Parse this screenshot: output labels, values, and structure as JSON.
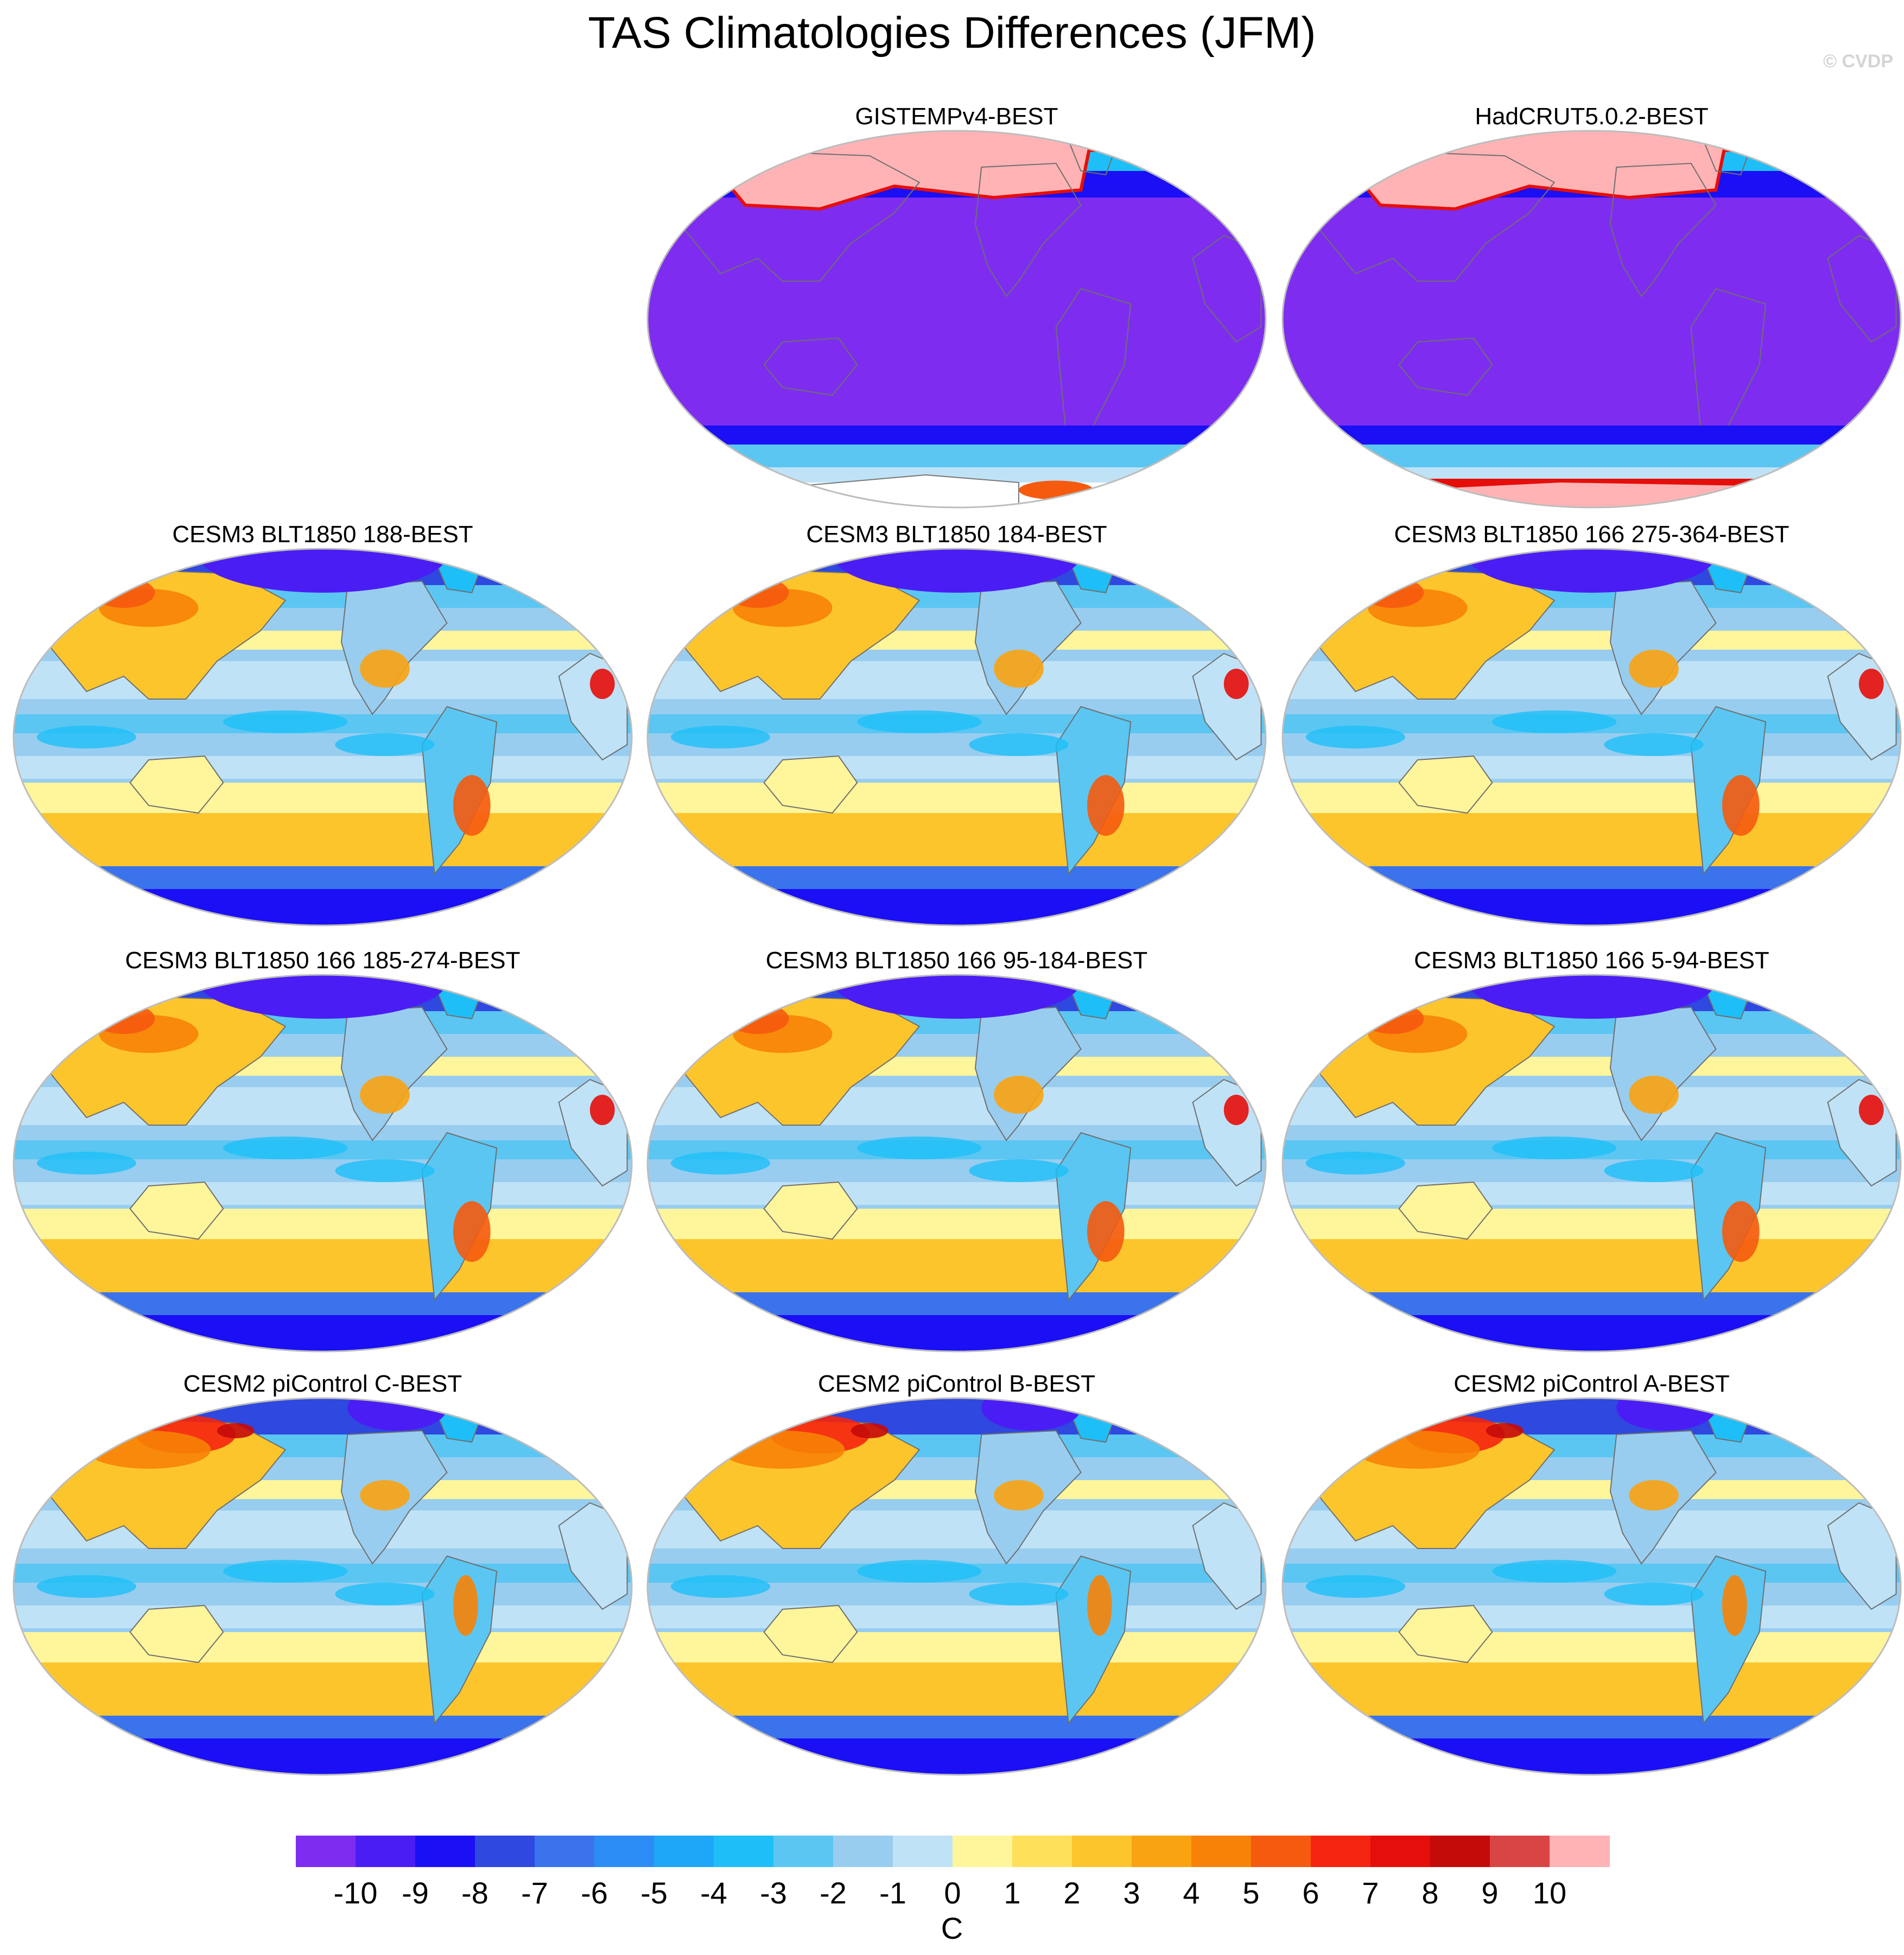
{
  "title": "TAS Climatologies Differences (JFM)",
  "copyright": "© CVDP",
  "panels": [
    {
      "id": "p-gistemp",
      "title": "GISTEMPv4-BEST",
      "style": "obs_gistemp"
    },
    {
      "id": "p-hadcrut",
      "title": "HadCRUT5.0.2-BEST",
      "style": "obs_hadcrut"
    },
    {
      "id": "p-cesm3-188",
      "title": "CESM3 BLT1850 188-BEST",
      "style": "model3"
    },
    {
      "id": "p-cesm3-184",
      "title": "CESM3 BLT1850 184-BEST",
      "style": "model3"
    },
    {
      "id": "p-cesm3-166a",
      "title": "CESM3 BLT1850 166 275-364-BEST",
      "style": "model3"
    },
    {
      "id": "p-cesm3-166b",
      "title": "CESM3 BLT1850 166 185-274-BEST",
      "style": "model3"
    },
    {
      "id": "p-cesm3-166c",
      "title": "CESM3 BLT1850 166 95-184-BEST",
      "style": "model3"
    },
    {
      "id": "p-cesm3-166d",
      "title": "CESM3 BLT1850 166 5-94-BEST",
      "style": "model3"
    },
    {
      "id": "p-cesm2-c",
      "title": "CESM2 piControl C-BEST",
      "style": "model2"
    },
    {
      "id": "p-cesm2-b",
      "title": "CESM2 piControl B-BEST",
      "style": "model2"
    },
    {
      "id": "p-cesm2-a",
      "title": "CESM2 piControl A-BEST",
      "style": "model2"
    }
  ],
  "colorbar": {
    "labels": [
      "-10",
      "-9",
      "-8",
      "-7",
      "-6",
      "-5",
      "-4",
      "-3",
      "-2",
      "-1",
      "0",
      "1",
      "2",
      "3",
      "4",
      "5",
      "6",
      "7",
      "8",
      "9",
      "10"
    ],
    "colors": [
      "#7e2df0",
      "#4b1df5",
      "#1a0ff5",
      "#2e48e0",
      "#3a73eb",
      "#2c8cf5",
      "#1ea6f8",
      "#1ebff8",
      "#5bc6f2",
      "#98cdf0",
      "#bfe2f6",
      "#fff59a",
      "#ffe05a",
      "#fdc52c",
      "#f9a311",
      "#f78207",
      "#f55a0e",
      "#f52410",
      "#e60e0a",
      "#c50a0a",
      "#d94444",
      "#ffb3b5"
    ],
    "units": "C"
  }
}
